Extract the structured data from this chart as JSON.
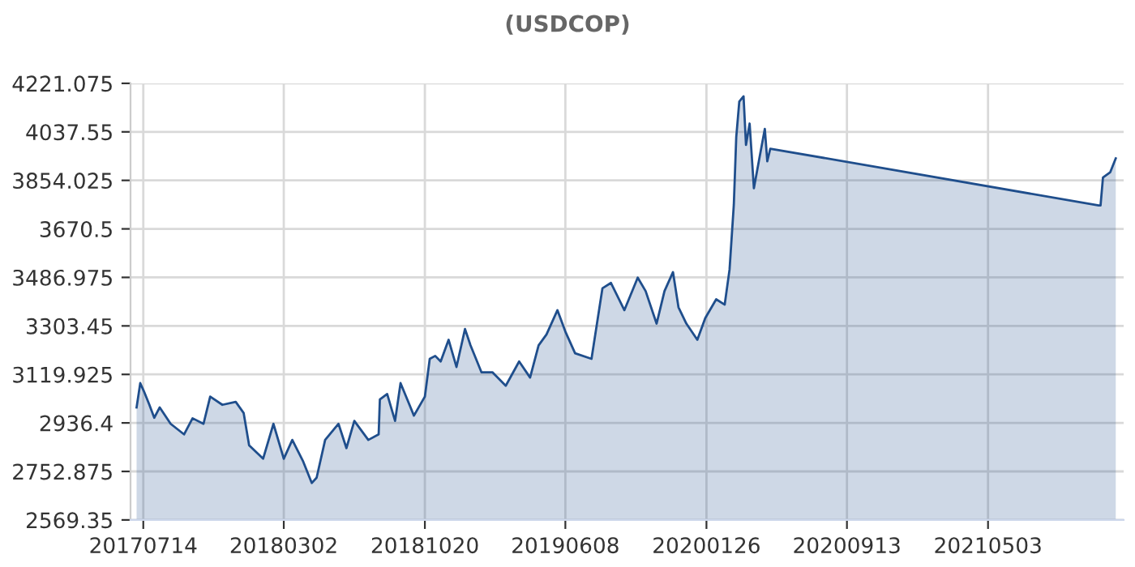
{
  "chart_data": {
    "type": "area",
    "title": "(USDCOP)",
    "x": [
      "2017-07-03",
      "2017-07-09",
      "2017-07-15",
      "2017-07-24",
      "2017-08-01",
      "2017-08-10",
      "2017-08-28",
      "2017-09-19",
      "2017-10-03",
      "2017-10-21",
      "2017-11-01",
      "2017-11-21",
      "2017-12-13",
      "2017-12-26",
      "2018-01-04",
      "2018-01-27",
      "2018-02-13",
      "2018-03-02",
      "2018-03-16",
      "2018-04-03",
      "2018-04-17",
      "2018-04-25",
      "2018-05-09",
      "2018-05-31",
      "2018-06-13",
      "2018-06-26",
      "2018-07-19",
      "2018-08-05",
      "2018-08-07",
      "2018-08-19",
      "2018-09-01",
      "2018-09-10",
      "2018-10-02",
      "2018-10-20",
      "2018-10-28",
      "2018-11-06",
      "2018-11-15",
      "2018-11-28",
      "2018-12-11",
      "2018-12-25",
      "2019-01-03",
      "2019-01-21",
      "2019-02-08",
      "2019-03-02",
      "2019-03-24",
      "2019-04-11",
      "2019-04-25",
      "2019-05-08",
      "2019-05-26",
      "2019-06-08",
      "2019-06-24",
      "2019-07-21",
      "2019-08-08",
      "2019-08-22",
      "2019-09-13",
      "2019-10-05",
      "2019-10-18",
      "2019-11-05",
      "2019-11-18",
      "2019-12-02",
      "2019-12-11",
      "2019-12-24",
      "2020-01-11",
      "2020-01-24",
      "2020-02-11",
      "2020-02-25",
      "2020-03-04",
      "2020-03-11",
      "2020-03-15",
      "2020-03-20",
      "2020-03-27",
      "2020-03-31",
      "2020-04-06",
      "2020-04-13",
      "2020-04-22",
      "2020-05-01",
      "2020-05-05",
      "2020-05-10",
      "2021-11-01",
      "2021-11-04",
      "2021-11-08",
      "2021-11-20",
      "2021-11-29"
    ],
    "series": [
      {
        "color": "#1f4e8c",
        "values": [
          2995,
          3087,
          3056,
          3005,
          2956,
          2995,
          2933,
          2893,
          2954,
          2933,
          3036,
          3005,
          3016,
          2974,
          2852,
          2801,
          2933,
          2801,
          2872,
          2790,
          2709,
          2729,
          2872,
          2933,
          2841,
          2944,
          2872,
          2893,
          3025,
          3046,
          2944,
          3087,
          2964,
          3036,
          3179,
          3190,
          3169,
          3251,
          3148,
          3292,
          3230,
          3128,
          3128,
          3077,
          3169,
          3108,
          3230,
          3271,
          3363,
          3282,
          3200,
          3179,
          3446,
          3466,
          3363,
          3486,
          3435,
          3312,
          3435,
          3507,
          3374,
          3312,
          3251,
          3333,
          3404,
          3384,
          3517,
          3762,
          4018,
          4152,
          4172,
          3988,
          4069,
          3824,
          3937,
          4049,
          3926,
          3974,
          3759,
          3759,
          3865,
          3885,
          3937
        ]
      }
    ],
    "xlim": [
      "2017-06-23",
      "2021-12-12"
    ],
    "xticks": [
      {
        "value": "2017-07-14",
        "label": "20170714"
      },
      {
        "value": "2018-03-02",
        "label": "20180302"
      },
      {
        "value": "2018-10-20",
        "label": "20181020"
      },
      {
        "value": "2019-06-08",
        "label": "20190608"
      },
      {
        "value": "2020-01-26",
        "label": "20200126"
      },
      {
        "value": "2020-09-13",
        "label": "20200913"
      },
      {
        "value": "2021-05-03",
        "label": "20210503"
      }
    ],
    "ylim": [
      2569.35,
      4221.075
    ],
    "yticks": [
      2569.35,
      2752.875,
      2936.4,
      3119.925,
      3303.45,
      3486.975,
      3670.5,
      3854.025,
      4037.55,
      4221.075
    ],
    "grid": true,
    "legend": false,
    "marker": "none",
    "line_style": "solid"
  }
}
